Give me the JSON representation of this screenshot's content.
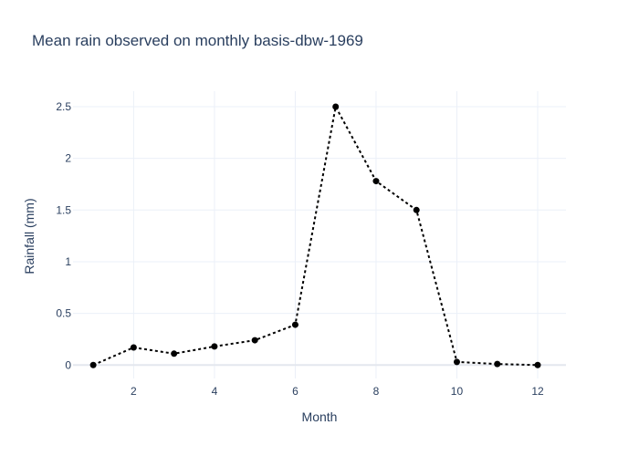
{
  "chart_data": {
    "type": "line",
    "title": "Mean rain observed on monthly basis-dbw-1969",
    "xlabel": "Month",
    "ylabel": "Rainfall (mm)",
    "xlim": [
      0.5,
      12.7
    ],
    "ylim": [
      -0.13,
      2.65
    ],
    "x_ticks": [
      2,
      4,
      6,
      8,
      10,
      12
    ],
    "y_ticks": [
      0,
      0.5,
      1,
      1.5,
      2,
      2.5
    ],
    "x_tick_labels": [
      "2",
      "4",
      "6",
      "8",
      "10",
      "12"
    ],
    "y_tick_labels": [
      "0",
      "0.5",
      "1",
      "1.5",
      "2",
      "2.5"
    ],
    "grid": true,
    "series": [
      {
        "line_style": "dotted",
        "color": "#000000",
        "x": [
          1,
          2,
          3,
          4,
          5,
          6,
          7,
          8,
          9,
          10,
          11,
          12
        ],
        "y": [
          0.0,
          0.17,
          0.11,
          0.18,
          0.24,
          0.39,
          2.5,
          1.78,
          1.5,
          0.03,
          0.01,
          0.0
        ]
      }
    ]
  }
}
